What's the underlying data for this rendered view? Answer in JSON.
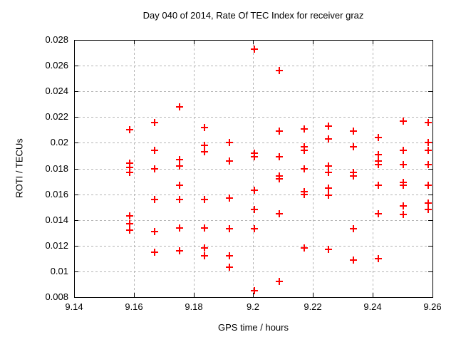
{
  "chart_data": {
    "type": "scatter",
    "title": "Day 040 of 2014, Rate Of TEC Index for receiver graz",
    "xlabel": "GPS time / hours",
    "ylabel": "ROTI / TECUs",
    "xlim": [
      9.14,
      9.26
    ],
    "ylim": [
      0.008,
      0.028
    ],
    "xtick_labels": [
      "9.14",
      "9.16",
      "9.18",
      "9.2",
      "9.22",
      "9.24",
      "9.26"
    ],
    "xticks": [
      9.14,
      9.16,
      9.18,
      9.2,
      9.22,
      9.24,
      9.26
    ],
    "ytick_labels": [
      "0.008",
      "0.01",
      "0.012",
      "0.014",
      "0.016",
      "0.018",
      "0.02",
      "0.022",
      "0.024",
      "0.026",
      "0.028"
    ],
    "yticks": [
      0.008,
      0.01,
      0.012,
      0.014,
      0.016,
      0.018,
      0.02,
      0.022,
      0.024,
      0.026,
      0.028
    ],
    "grid": true,
    "legend": "none",
    "marker": "plus",
    "marker_color": "#ff0000",
    "grid_color": "#b5b5b5",
    "frame_color": "#000000",
    "points": [
      [
        9.15861,
        0.021
      ],
      [
        9.15861,
        0.0184
      ],
      [
        9.15861,
        0.0181
      ],
      [
        9.15861,
        0.0177
      ],
      [
        9.15861,
        0.0143
      ],
      [
        9.15861,
        0.0137
      ],
      [
        9.15861,
        0.0132
      ],
      [
        9.16694,
        0.0216
      ],
      [
        9.16694,
        0.0194
      ],
      [
        9.16694,
        0.018
      ],
      [
        9.16694,
        0.0156
      ],
      [
        9.16694,
        0.0131
      ],
      [
        9.16694,
        0.0115
      ],
      [
        9.17528,
        0.0228
      ],
      [
        9.17528,
        0.0187
      ],
      [
        9.17528,
        0.0182
      ],
      [
        9.17528,
        0.0167
      ],
      [
        9.17528,
        0.0156
      ],
      [
        9.17528,
        0.0134
      ],
      [
        9.17528,
        0.0116
      ],
      [
        9.18361,
        0.0212
      ],
      [
        9.18361,
        0.0198
      ],
      [
        9.18361,
        0.0193
      ],
      [
        9.18361,
        0.0156
      ],
      [
        9.18361,
        0.0134
      ],
      [
        9.18361,
        0.0118
      ],
      [
        9.18361,
        0.0112
      ],
      [
        9.19194,
        0.02
      ],
      [
        9.19194,
        0.0186
      ],
      [
        9.19194,
        0.0157
      ],
      [
        9.19194,
        0.0133
      ],
      [
        9.19194,
        0.0112
      ],
      [
        9.19194,
        0.0103
      ],
      [
        9.20028,
        0.0273
      ],
      [
        9.20028,
        0.0192
      ],
      [
        9.20028,
        0.0189
      ],
      [
        9.20028,
        0.0163
      ],
      [
        9.20028,
        0.0148
      ],
      [
        9.20028,
        0.0133
      ],
      [
        9.20028,
        0.0085
      ],
      [
        9.20861,
        0.0256
      ],
      [
        9.20861,
        0.0209
      ],
      [
        9.20861,
        0.0189
      ],
      [
        9.20861,
        0.0174
      ],
      [
        9.20861,
        0.0172
      ],
      [
        9.20861,
        0.0145
      ],
      [
        9.20861,
        0.0092
      ],
      [
        9.21694,
        0.0211
      ],
      [
        9.21694,
        0.0197
      ],
      [
        9.21694,
        0.0194
      ],
      [
        9.21694,
        0.018
      ],
      [
        9.21694,
        0.0162
      ],
      [
        9.21694,
        0.016
      ],
      [
        9.21694,
        0.0118
      ],
      [
        9.22528,
        0.0213
      ],
      [
        9.22528,
        0.0203
      ],
      [
        9.22528,
        0.0182
      ],
      [
        9.22528,
        0.0177
      ],
      [
        9.22528,
        0.0165
      ],
      [
        9.22528,
        0.0159
      ],
      [
        9.22528,
        0.0117
      ],
      [
        9.23361,
        0.0209
      ],
      [
        9.23361,
        0.0197
      ],
      [
        9.23361,
        0.0177
      ],
      [
        9.23361,
        0.0174
      ],
      [
        9.23361,
        0.0133
      ],
      [
        9.23361,
        0.0109
      ],
      [
        9.24194,
        0.0204
      ],
      [
        9.24194,
        0.0191
      ],
      [
        9.24194,
        0.0186
      ],
      [
        9.24194,
        0.0183
      ],
      [
        9.24194,
        0.0167
      ],
      [
        9.24194,
        0.0145
      ],
      [
        9.24194,
        0.011
      ],
      [
        9.25028,
        0.0217
      ],
      [
        9.25028,
        0.0194
      ],
      [
        9.25028,
        0.0183
      ],
      [
        9.25028,
        0.0169
      ],
      [
        9.25028,
        0.0167
      ],
      [
        9.25028,
        0.0151
      ],
      [
        9.25028,
        0.0144
      ],
      [
        9.25861,
        0.0216
      ],
      [
        9.25861,
        0.02
      ],
      [
        9.25861,
        0.0194
      ],
      [
        9.25861,
        0.0183
      ],
      [
        9.25861,
        0.0167
      ],
      [
        9.25861,
        0.0153
      ],
      [
        9.25861,
        0.0148
      ]
    ]
  }
}
